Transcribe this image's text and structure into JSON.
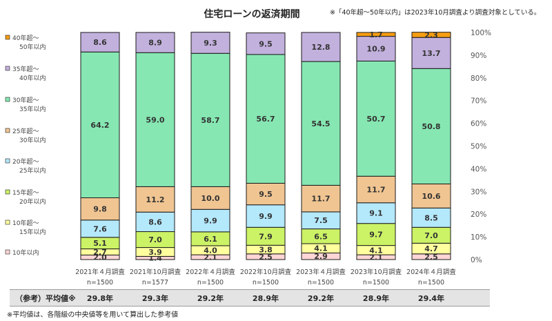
{
  "title": "住宅ローンの返済期間",
  "note_top": "※「40年超～50年以内」は2023年10月調査より調査対象としている。",
  "note_bottom": "※平均値は、各階級の中央値等を用いて算出した参考値",
  "average_label": "（参考）平均値※",
  "averages": [
    "29.8年",
    "29.3年",
    "29.2年",
    "28.9年",
    "29.2年",
    "28.9年",
    "29.4年"
  ],
  "colors": {
    "le10": "#ffd5d5",
    "y10_15": "#ffff9e",
    "y15_20": "#ccf266",
    "y20_25": "#b4e8fb",
    "y25_30": "#f0c592",
    "y30_35": "#86e7b2",
    "y35_40": "#c2b0dd",
    "y40_50": "#f59d13"
  },
  "chart_data": {
    "type": "bar",
    "stacked": true,
    "categories": [
      "2021年４月調査",
      "2021年10月調査",
      "2022年４月調査",
      "2022年10月調査",
      "2023年４月調査",
      "2023年10月調査",
      "2024年４月調査"
    ],
    "sample_sizes": [
      "n=1500",
      "n=1577",
      "n=1500",
      "n=1500",
      "n=1500",
      "n=1500",
      "n=1500"
    ],
    "series": [
      {
        "key": "le10",
        "name": "10年以内",
        "values": [
          2.0,
          1.4,
          2.1,
          2.5,
          2.9,
          2.1,
          2.5
        ],
        "labels": [
          "2.0",
          "1.4",
          "2.1",
          "2.5",
          "2.9",
          "2.1",
          "2.5"
        ]
      },
      {
        "key": "y10_15",
        "name": "10年超～15年以内",
        "values": [
          2.7,
          3.9,
          4.0,
          3.8,
          4.1,
          4.1,
          4.7
        ],
        "labels": [
          "2.7",
          "3.9",
          "4.0",
          "3.8",
          "4.1",
          "4.1",
          "4.7"
        ]
      },
      {
        "key": "y15_20",
        "name": "15年超～20年以内",
        "values": [
          5.1,
          7.0,
          6.1,
          7.9,
          6.5,
          9.7,
          7.0
        ],
        "labels": [
          "5.1",
          "7.0",
          "6.1",
          "7.9",
          "6.5",
          "9.7",
          "7.0"
        ]
      },
      {
        "key": "y20_25",
        "name": "20年超～25年以内",
        "values": [
          7.6,
          8.6,
          9.9,
          9.9,
          7.5,
          9.1,
          8.5
        ],
        "labels": [
          "7.6",
          "8.6",
          "9.9",
          "9.9",
          "7.5",
          "9.1",
          "8.5"
        ]
      },
      {
        "key": "y25_30",
        "name": "25年超～30年以内",
        "values": [
          9.8,
          11.2,
          10.0,
          9.5,
          11.7,
          11.7,
          10.6
        ],
        "labels": [
          "9.8",
          "11.2",
          "10.0",
          "9.5",
          "11.7",
          "11.7",
          "10.6"
        ]
      },
      {
        "key": "y30_35",
        "name": "30年超～35年以内",
        "values": [
          64.2,
          59.0,
          58.7,
          56.7,
          54.5,
          50.7,
          50.8
        ],
        "labels": [
          "64.2",
          "59.0",
          "58.7",
          "56.7",
          "54.5",
          "50.7",
          "50.8"
        ]
      },
      {
        "key": "y35_40",
        "name": "35年超～40年以内",
        "values": [
          8.6,
          8.9,
          9.3,
          9.5,
          12.8,
          10.9,
          13.7
        ],
        "labels": [
          "8.6",
          "8.9",
          "9.3",
          "9.5",
          "12.8",
          "10.9",
          "13.7"
        ]
      },
      {
        "key": "y40_50",
        "name": "40年超～50年以内",
        "values": [
          0,
          0,
          0,
          0,
          0,
          1.7,
          2.3
        ],
        "labels": [
          "",
          "",
          "",
          "",
          "",
          "1.7",
          "2.3"
        ]
      }
    ],
    "legend": {
      "placement": "left",
      "entries": [
        {
          "key": "y40_50",
          "line1": "40年超～",
          "line2": "50年以内"
        },
        {
          "key": "y35_40",
          "line1": "35年超～",
          "line2": "40年以内"
        },
        {
          "key": "y30_35",
          "line1": "30年超～",
          "line2": "35年以内"
        },
        {
          "key": "y25_30",
          "line1": "25年超～",
          "line2": "30年以内"
        },
        {
          "key": "y20_25",
          "line1": "20年超～",
          "line2": "25年以内"
        },
        {
          "key": "y15_20",
          "line1": "15年超～",
          "line2": "20年以内"
        },
        {
          "key": "y10_15",
          "line1": "10年超～",
          "line2": "15年以内"
        },
        {
          "key": "le10",
          "line1": "10年以内",
          "line2": ""
        }
      ]
    },
    "y_axis": {
      "position": "right",
      "range": [
        0,
        100
      ],
      "ticks": [
        "0%",
        "10%",
        "20%",
        "30%",
        "40%",
        "50%",
        "60%",
        "70%",
        "80%",
        "90%",
        "100%"
      ]
    }
  }
}
